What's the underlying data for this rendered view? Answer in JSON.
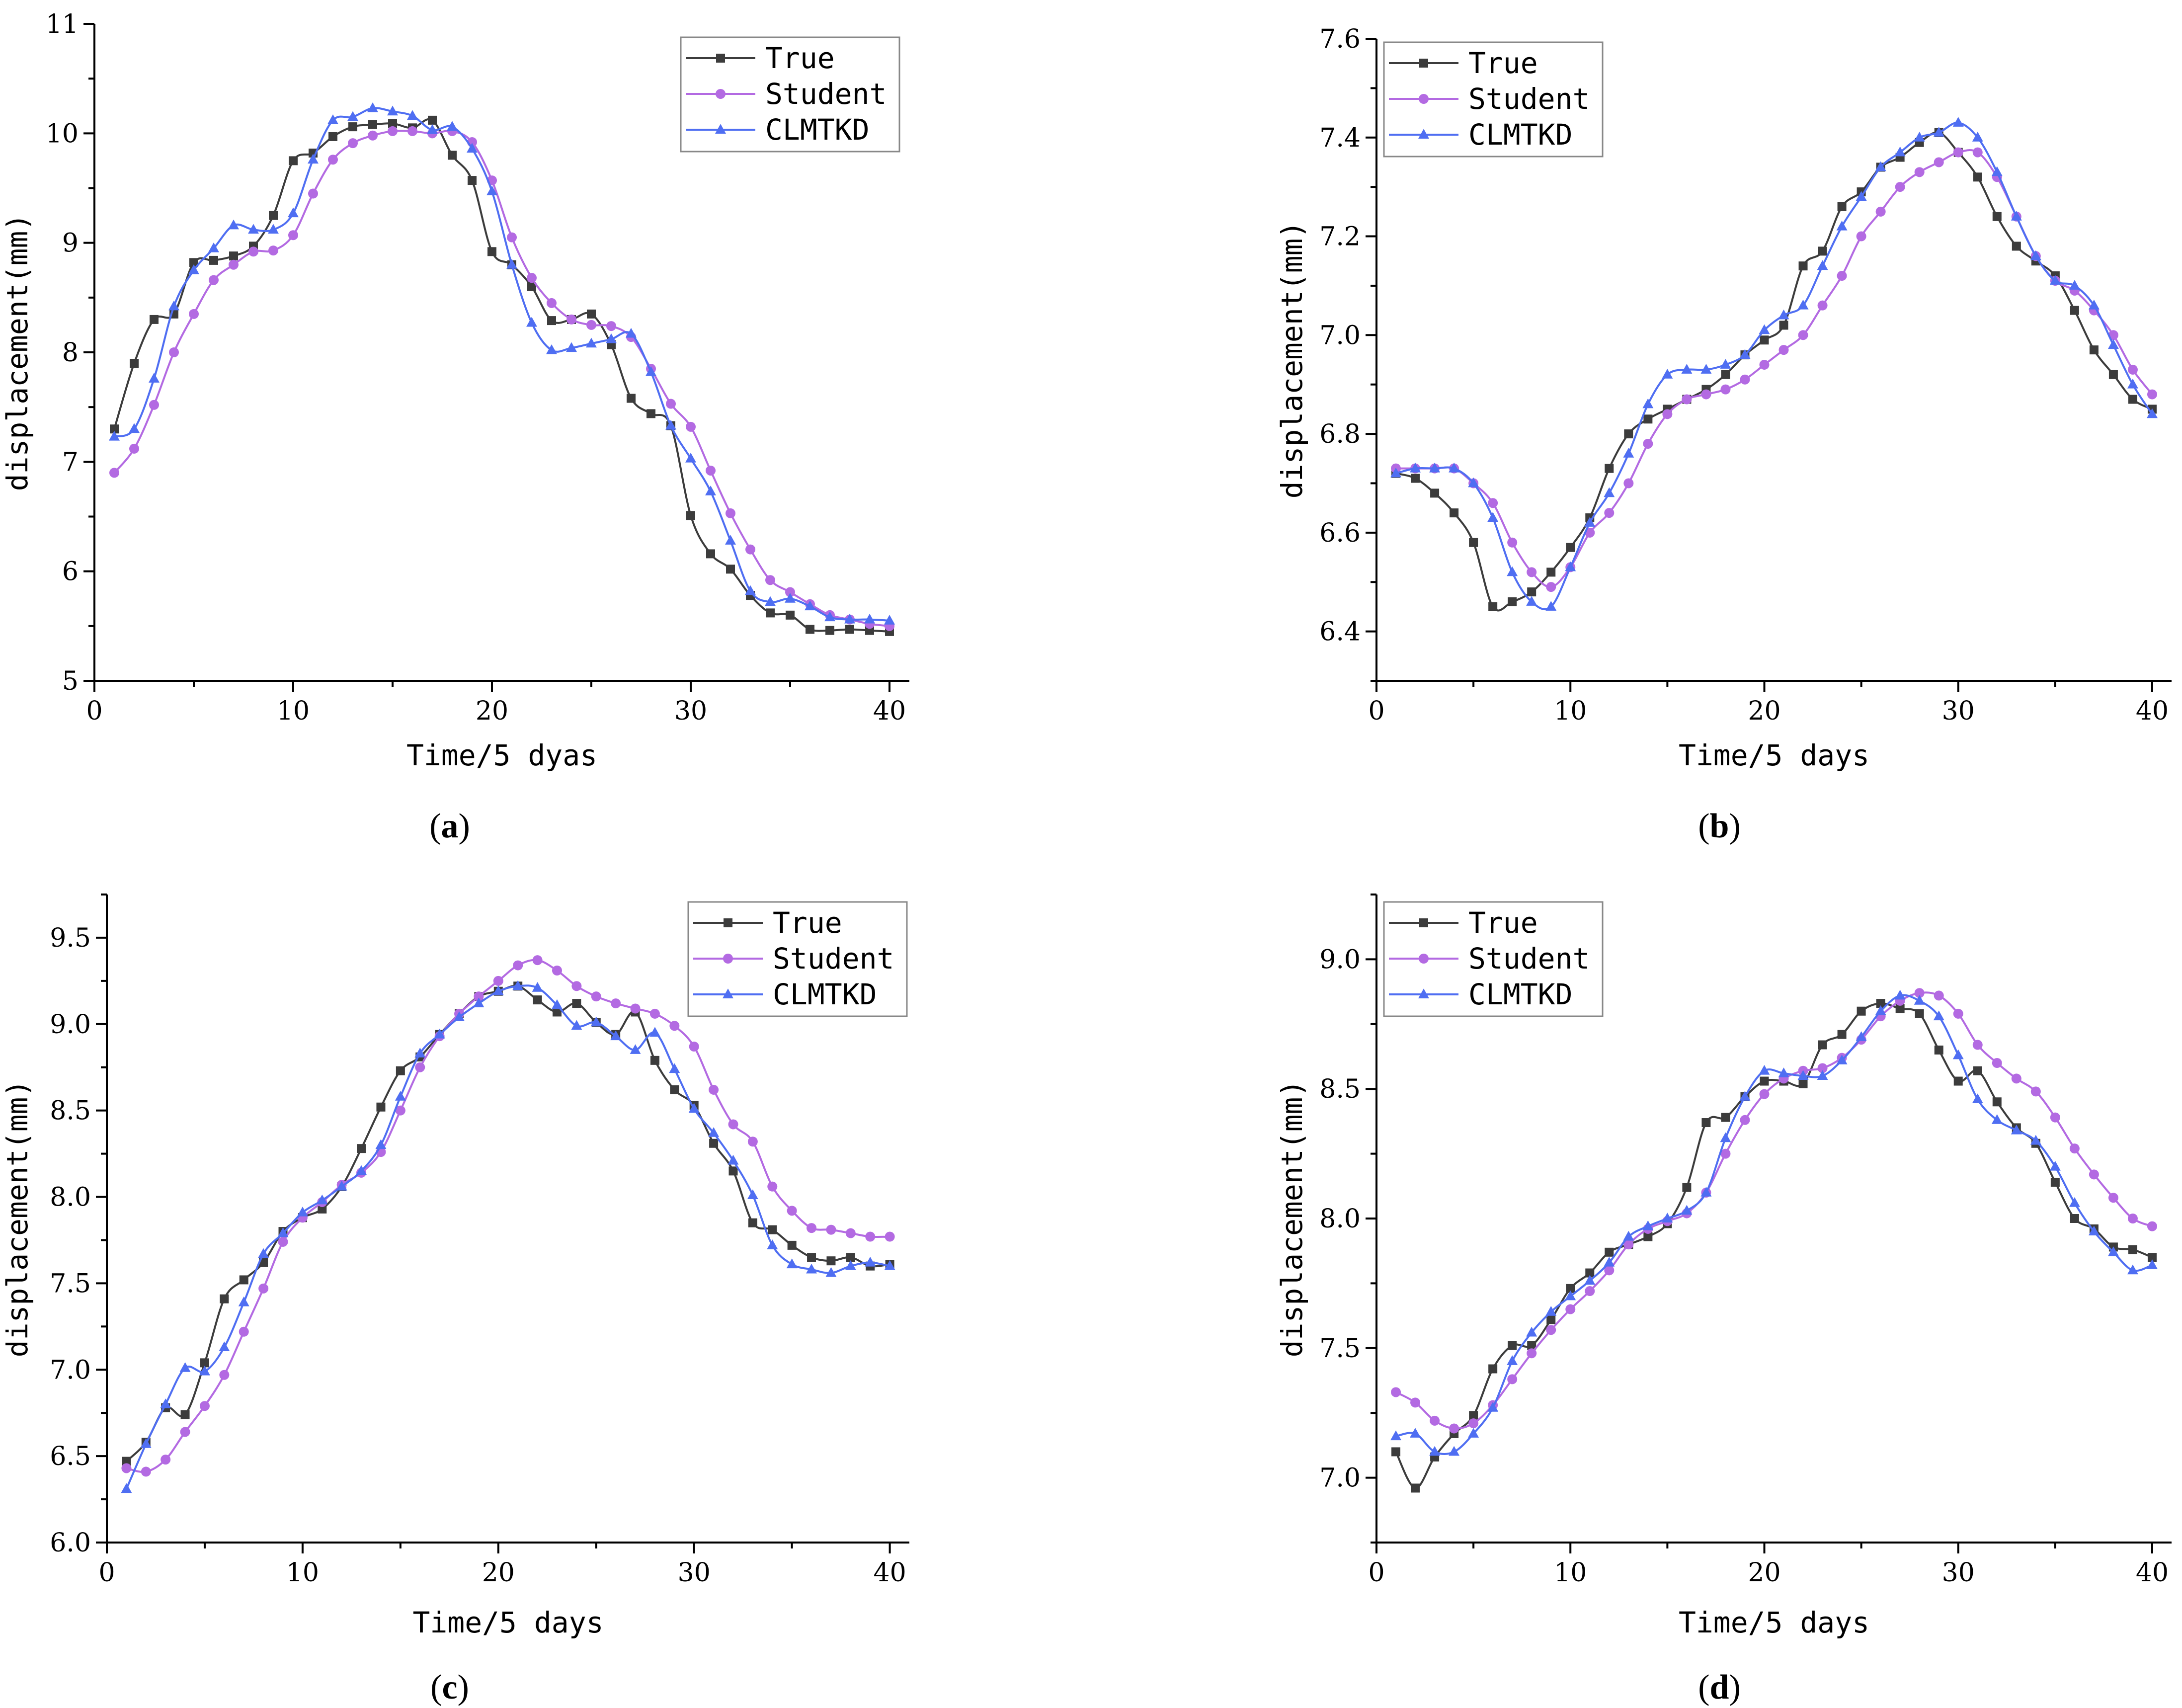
{
  "colors": {
    "true": "#3c3c3c",
    "student": "#b36ae2",
    "clmtkd": "#4f6ef2"
  },
  "series_names": [
    "True",
    "Student",
    "CLMTKD"
  ],
  "chart_data": [
    {
      "type": "line",
      "panel_label": "a",
      "xlabel": "Time/5 dyas",
      "ylabel": "displacement(mm)",
      "xlim": [
        0,
        41
      ],
      "ylim": [
        5,
        11
      ],
      "xticks": [
        0,
        10,
        20,
        30,
        40
      ],
      "yticks": [
        5,
        6,
        7,
        8,
        9,
        10,
        11
      ],
      "ytick_labels": [
        "5",
        "6",
        "7",
        "8",
        "9",
        "10",
        "11"
      ],
      "legend": [
        "True",
        "Student",
        "CLMTKD"
      ],
      "legend_position": "top-right",
      "x": [
        1,
        2,
        3,
        4,
        5,
        6,
        7,
        8,
        9,
        10,
        11,
        12,
        13,
        14,
        15,
        16,
        17,
        18,
        19,
        20,
        21,
        22,
        23,
        24,
        25,
        26,
        27,
        28,
        29,
        30,
        31,
        32,
        33,
        34,
        35,
        36,
        37,
        38,
        39,
        40
      ],
      "series": [
        {
          "name": "True",
          "values": [
            7.3,
            7.9,
            8.3,
            8.35,
            8.82,
            8.84,
            8.88,
            8.97,
            9.25,
            9.75,
            9.82,
            9.97,
            10.06,
            10.08,
            10.09,
            10.05,
            10.12,
            9.8,
            9.57,
            8.92,
            8.8,
            8.6,
            8.29,
            8.3,
            8.35,
            8.07,
            7.58,
            7.44,
            7.33,
            6.51,
            6.16,
            6.02,
            5.78,
            5.62,
            5.6,
            5.47,
            5.46,
            5.47,
            5.46,
            5.45
          ]
        },
        {
          "name": "Student",
          "values": [
            6.9,
            7.12,
            7.52,
            8.0,
            8.35,
            8.66,
            8.8,
            8.92,
            8.93,
            9.07,
            9.45,
            9.76,
            9.91,
            9.98,
            10.02,
            10.02,
            10.0,
            10.02,
            9.92,
            9.57,
            9.05,
            8.68,
            8.45,
            8.3,
            8.25,
            8.24,
            8.14,
            7.85,
            7.53,
            7.32,
            6.92,
            6.53,
            6.2,
            5.92,
            5.81,
            5.7,
            5.6,
            5.56,
            5.52,
            5.5
          ]
        },
        {
          "name": "CLMTKD",
          "values": [
            7.23,
            7.3,
            7.76,
            8.42,
            8.75,
            8.95,
            9.16,
            9.12,
            9.12,
            9.27,
            9.76,
            10.12,
            10.15,
            10.23,
            10.2,
            10.16,
            10.03,
            10.06,
            9.86,
            9.47,
            8.8,
            8.27,
            8.02,
            8.04,
            8.08,
            8.12,
            8.17,
            7.82,
            7.33,
            7.03,
            6.73,
            6.28,
            5.82,
            5.72,
            5.75,
            5.68,
            5.58,
            5.56,
            5.56,
            5.55
          ]
        }
      ]
    },
    {
      "type": "line",
      "panel_label": "b",
      "xlabel": "Time/5 days",
      "ylabel": "displacement(mm)",
      "xlim": [
        0,
        41
      ],
      "ylim": [
        6.3,
        7.6
      ],
      "xticks": [
        0,
        10,
        20,
        30,
        40
      ],
      "yticks": [
        6.4,
        6.6,
        6.8,
        7.0,
        7.2,
        7.4,
        7.6
      ],
      "ytick_labels": [
        "6.4",
        "6.6",
        "6.8",
        "7.0",
        "7.2",
        "7.4",
        "7.6"
      ],
      "legend": [
        "True",
        "Student",
        "CLMTKD"
      ],
      "legend_position": "top-left",
      "x": [
        1,
        2,
        3,
        4,
        5,
        6,
        7,
        8,
        9,
        10,
        11,
        12,
        13,
        14,
        15,
        16,
        17,
        18,
        19,
        20,
        21,
        22,
        23,
        24,
        25,
        26,
        27,
        28,
        29,
        30,
        31,
        32,
        33,
        34,
        35,
        36,
        37,
        38,
        39,
        40
      ],
      "series": [
        {
          "name": "True",
          "values": [
            6.72,
            6.71,
            6.68,
            6.64,
            6.58,
            6.45,
            6.46,
            6.48,
            6.52,
            6.57,
            6.63,
            6.73,
            6.8,
            6.83,
            6.85,
            6.87,
            6.89,
            6.92,
            6.96,
            6.99,
            7.02,
            7.14,
            7.17,
            7.26,
            7.29,
            7.34,
            7.36,
            7.39,
            7.41,
            7.37,
            7.32,
            7.24,
            7.18,
            7.15,
            7.12,
            7.05,
            6.97,
            6.92,
            6.87,
            6.85
          ]
        },
        {
          "name": "Student",
          "values": [
            6.73,
            6.73,
            6.73,
            6.73,
            6.7,
            6.66,
            6.58,
            6.52,
            6.49,
            6.53,
            6.6,
            6.64,
            6.7,
            6.78,
            6.84,
            6.87,
            6.88,
            6.89,
            6.91,
            6.94,
            6.97,
            7.0,
            7.06,
            7.12,
            7.2,
            7.25,
            7.3,
            7.33,
            7.35,
            7.37,
            7.37,
            7.32,
            7.24,
            7.16,
            7.11,
            7.09,
            7.05,
            7.0,
            6.93,
            6.88
          ]
        },
        {
          "name": "CLMTKD",
          "values": [
            6.72,
            6.73,
            6.73,
            6.73,
            6.7,
            6.63,
            6.52,
            6.46,
            6.45,
            6.53,
            6.62,
            6.68,
            6.76,
            6.86,
            6.92,
            6.93,
            6.93,
            6.94,
            6.96,
            7.01,
            7.04,
            7.06,
            7.14,
            7.22,
            7.28,
            7.34,
            7.37,
            7.4,
            7.41,
            7.43,
            7.4,
            7.33,
            7.24,
            7.16,
            7.11,
            7.1,
            7.06,
            6.98,
            6.9,
            6.84
          ]
        }
      ]
    },
    {
      "type": "line",
      "panel_label": "c",
      "xlabel": "Time/5 days",
      "ylabel": "displacement(mm)",
      "xlim": [
        0,
        41
      ],
      "ylim": [
        6.0,
        9.75
      ],
      "xticks": [
        0,
        10,
        20,
        30,
        40
      ],
      "yticks": [
        6.0,
        6.5,
        7.0,
        7.5,
        8.0,
        8.5,
        9.0,
        9.5
      ],
      "ytick_labels": [
        "6.0",
        "6.5",
        "7.0",
        "7.5",
        "8.0",
        "8.5",
        "9.0",
        "9.5"
      ],
      "legend": [
        "True",
        "Student",
        "CLMTKD"
      ],
      "legend_position": "top-right",
      "x": [
        1,
        2,
        3,
        4,
        5,
        6,
        7,
        8,
        9,
        10,
        11,
        12,
        13,
        14,
        15,
        16,
        17,
        18,
        19,
        20,
        21,
        22,
        23,
        24,
        25,
        26,
        27,
        28,
        29,
        30,
        31,
        32,
        33,
        34,
        35,
        36,
        37,
        38,
        39,
        40
      ],
      "series": [
        {
          "name": "True",
          "values": [
            6.47,
            6.58,
            6.78,
            6.74,
            7.04,
            7.41,
            7.52,
            7.62,
            7.8,
            7.88,
            7.93,
            8.06,
            8.28,
            8.52,
            8.73,
            8.81,
            8.94,
            9.06,
            9.16,
            9.19,
            9.22,
            9.14,
            9.07,
            9.12,
            9.01,
            8.94,
            9.07,
            8.79,
            8.62,
            8.53,
            8.31,
            8.15,
            7.85,
            7.81,
            7.72,
            7.65,
            7.63,
            7.65,
            7.6,
            7.61
          ]
        },
        {
          "name": "Student",
          "values": [
            6.43,
            6.41,
            6.48,
            6.64,
            6.79,
            6.97,
            7.22,
            7.47,
            7.74,
            7.88,
            7.97,
            8.07,
            8.14,
            8.26,
            8.5,
            8.75,
            8.93,
            9.06,
            9.16,
            9.25,
            9.34,
            9.37,
            9.31,
            9.22,
            9.16,
            9.12,
            9.09,
            9.06,
            8.99,
            8.87,
            8.62,
            8.42,
            8.32,
            8.06,
            7.92,
            7.82,
            7.81,
            7.79,
            7.77,
            7.77
          ]
        },
        {
          "name": "CLMTKD",
          "values": [
            6.31,
            6.57,
            6.8,
            7.01,
            6.99,
            7.13,
            7.39,
            7.67,
            7.79,
            7.91,
            7.98,
            8.06,
            8.15,
            8.3,
            8.58,
            8.83,
            8.94,
            9.04,
            9.12,
            9.19,
            9.22,
            9.21,
            9.11,
            8.99,
            9.01,
            8.93,
            8.85,
            8.95,
            8.74,
            8.51,
            8.37,
            8.21,
            8.01,
            7.72,
            7.61,
            7.58,
            7.56,
            7.6,
            7.62,
            7.6
          ]
        }
      ]
    },
    {
      "type": "line",
      "panel_label": "d",
      "xlabel": "Time/5 days",
      "ylabel": "displacement(mm)",
      "xlim": [
        0,
        41
      ],
      "ylim": [
        6.75,
        9.25
      ],
      "xticks": [
        0,
        10,
        20,
        30,
        40
      ],
      "yticks": [
        7.0,
        7.5,
        8.0,
        8.5,
        9.0
      ],
      "ytick_labels": [
        "7.0",
        "7.5",
        "8.0",
        "8.5",
        "9.0"
      ],
      "legend": [
        "True",
        "Student",
        "CLMTKD"
      ],
      "legend_position": "top-left",
      "x": [
        1,
        2,
        3,
        4,
        5,
        6,
        7,
        8,
        9,
        10,
        11,
        12,
        13,
        14,
        15,
        16,
        17,
        18,
        19,
        20,
        21,
        22,
        23,
        24,
        25,
        26,
        27,
        28,
        29,
        30,
        31,
        32,
        33,
        34,
        35,
        36,
        37,
        38,
        39,
        40
      ],
      "series": [
        {
          "name": "True",
          "values": [
            7.1,
            6.96,
            7.08,
            7.17,
            7.24,
            7.42,
            7.51,
            7.51,
            7.61,
            7.73,
            7.79,
            7.87,
            7.9,
            7.93,
            7.98,
            8.12,
            8.37,
            8.39,
            8.47,
            8.53,
            8.53,
            8.52,
            8.67,
            8.71,
            8.8,
            8.83,
            8.81,
            8.79,
            8.65,
            8.53,
            8.57,
            8.45,
            8.35,
            8.29,
            8.14,
            8.0,
            7.96,
            7.89,
            7.88,
            7.85
          ]
        },
        {
          "name": "Student",
          "values": [
            7.33,
            7.29,
            7.22,
            7.19,
            7.21,
            7.28,
            7.38,
            7.48,
            7.57,
            7.65,
            7.72,
            7.8,
            7.9,
            7.96,
            7.99,
            8.02,
            8.1,
            8.25,
            8.38,
            8.48,
            8.54,
            8.57,
            8.58,
            8.62,
            8.69,
            8.78,
            8.84,
            8.87,
            8.86,
            8.79,
            8.67,
            8.6,
            8.54,
            8.49,
            8.39,
            8.27,
            8.17,
            8.08,
            8.0,
            7.97
          ]
        },
        {
          "name": "CLMTKD",
          "values": [
            7.16,
            7.17,
            7.1,
            7.1,
            7.17,
            7.27,
            7.45,
            7.56,
            7.64,
            7.7,
            7.76,
            7.83,
            7.93,
            7.97,
            8.0,
            8.03,
            8.1,
            8.31,
            8.47,
            8.57,
            8.56,
            8.55,
            8.55,
            8.61,
            8.7,
            8.8,
            8.86,
            8.84,
            8.78,
            8.63,
            8.46,
            8.38,
            8.34,
            8.3,
            8.2,
            8.06,
            7.95,
            7.87,
            7.8,
            7.82
          ]
        }
      ]
    }
  ]
}
